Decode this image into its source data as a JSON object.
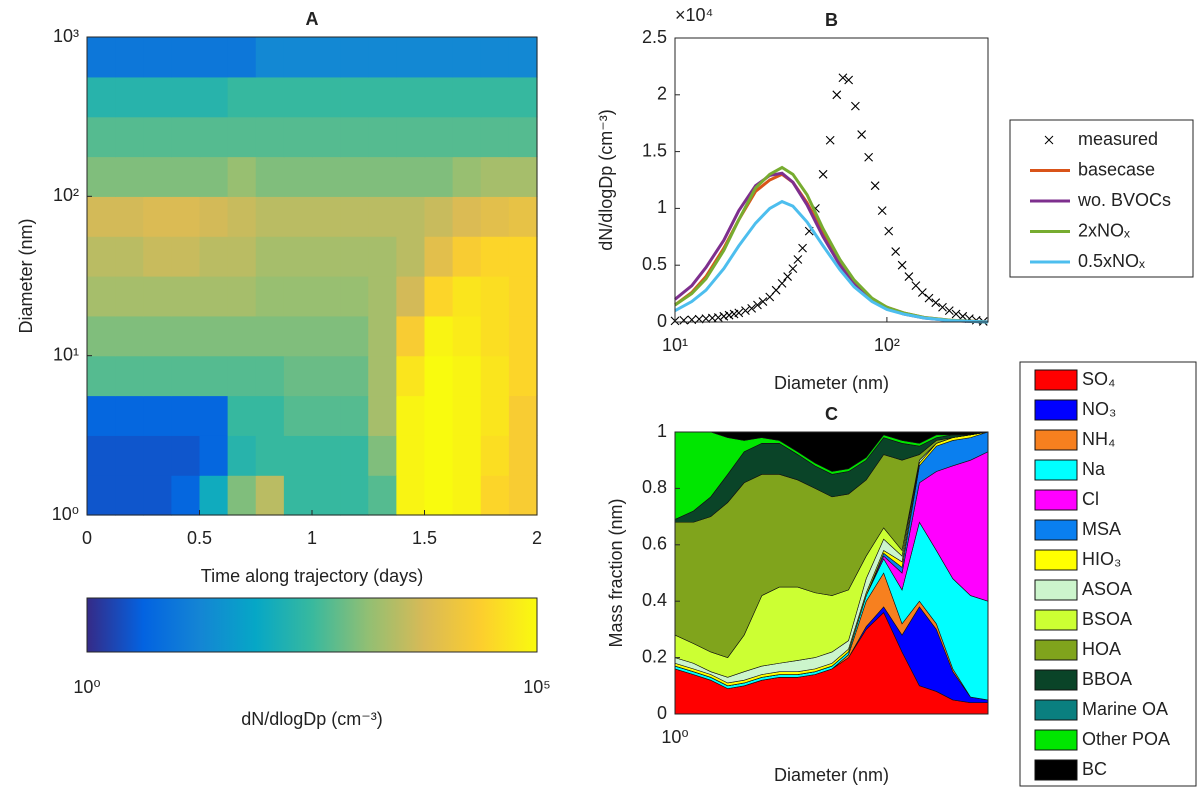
{
  "chart_data": [
    {
      "type": "heatmap",
      "title": "A",
      "xlabel": "Time along trajectory (days)",
      "ylabel": "Diameter (nm)",
      "x_bins": [
        0,
        0.125,
        0.25,
        0.375,
        0.5,
        0.625,
        0.75,
        0.875,
        1,
        1.125,
        1.25,
        1.375,
        1.5,
        1.625,
        1.75,
        1.875,
        2
      ],
      "y_bins": [
        1,
        1.778,
        3.162,
        5.623,
        10,
        17.78,
        31.62,
        56.23,
        100,
        177.8,
        316.2,
        562.3,
        1000
      ],
      "z": [
        [
          3,
          3,
          3,
          5,
          100,
          1000,
          3000,
          300,
          300,
          300,
          500,
          80000,
          100000,
          80000,
          30000,
          20000
        ],
        [
          3,
          3,
          3,
          3,
          5,
          200,
          300,
          300,
          300,
          300,
          1000,
          80000,
          100000,
          80000,
          40000,
          20000
        ],
        [
          5,
          5,
          5,
          5,
          5,
          300,
          300,
          500,
          500,
          500,
          2000,
          80000,
          100000,
          80000,
          50000,
          20000
        ],
        [
          500,
          500,
          500,
          500,
          500,
          500,
          500,
          700,
          700,
          700,
          2000,
          50000,
          100000,
          80000,
          50000,
          30000
        ],
        [
          1000,
          1000,
          1000,
          1000,
          1000,
          1000,
          1000,
          1000,
          1000,
          1000,
          2000,
          20000,
          80000,
          60000,
          40000,
          30000
        ],
        [
          2000,
          2000,
          2000,
          2000,
          2000,
          2000,
          1500,
          1500,
          1500,
          1500,
          2000,
          5000,
          30000,
          50000,
          40000,
          30000
        ],
        [
          3000,
          3000,
          4000,
          4000,
          3000,
          3000,
          2000,
          2000,
          2000,
          2000,
          2000,
          3000,
          8000,
          20000,
          30000,
          30000
        ],
        [
          5000,
          5000,
          6000,
          6000,
          5000,
          4000,
          3000,
          3000,
          3000,
          3000,
          3000,
          3000,
          4000,
          6000,
          8000,
          10000
        ],
        [
          1000,
          1000,
          1000,
          1000,
          1000,
          1500,
          1000,
          1000,
          1000,
          1000,
          1000,
          1000,
          1000,
          1500,
          2000,
          2000
        ],
        [
          500,
          500,
          500,
          500,
          500,
          500,
          500,
          500,
          500,
          500,
          500,
          500,
          500,
          500,
          500,
          500
        ],
        [
          200,
          200,
          200,
          200,
          200,
          300,
          300,
          300,
          300,
          300,
          300,
          300,
          300,
          300,
          300,
          300
        ],
        [
          10,
          10,
          10,
          10,
          10,
          10,
          20,
          20,
          20,
          20,
          20,
          20,
          20,
          20,
          20,
          20
        ]
      ],
      "xlim": [
        0,
        2
      ],
      "xticks": [
        0,
        0.5,
        1,
        1.5,
        2
      ],
      "ylim": [
        1,
        1000
      ],
      "ylog": true,
      "yticks": [
        {
          "value": 1,
          "label": "10⁰"
        },
        {
          "value": 10,
          "label": "10¹"
        },
        {
          "value": 100,
          "label": "10²"
        },
        {
          "value": 1000,
          "label": "10³"
        }
      ],
      "clim": [
        1,
        100000
      ],
      "clog": true,
      "cticks": [
        {
          "value": 1,
          "label": "10⁰"
        },
        {
          "value": 100000,
          "label": "10⁵"
        }
      ],
      "colorbar_label": "dN/dlogDp (cm⁻³)",
      "colormap": [
        "#352a87",
        "#0363e1",
        "#1485d4",
        "#06a7c6",
        "#38b99e",
        "#92bf73",
        "#d9ba56",
        "#fcce2e",
        "#f9fb0e"
      ]
    },
    {
      "type": "line",
      "title": "B",
      "xlabel": "Diameter (nm)",
      "ylabel": "dN/dlogDp (cm⁻³)",
      "exponent_label": "×10⁴",
      "xlim": [
        10,
        300
      ],
      "xlog": true,
      "xticks": [
        {
          "value": 10,
          "label": "10¹"
        },
        {
          "value": 100,
          "label": "10²"
        }
      ],
      "ylim": [
        0,
        25000
      ],
      "yticks": [
        0,
        {
          "value": 5000,
          "label": "0.5"
        },
        {
          "value": 10000,
          "label": "1"
        },
        {
          "value": 15000,
          "label": "1.5"
        },
        {
          "value": 20000,
          "label": "2"
        },
        {
          "value": 25000,
          "label": "2.5"
        }
      ],
      "x": [
        10,
        12,
        14,
        17,
        20,
        24,
        28,
        32,
        36,
        42,
        50,
        60,
        70,
        85,
        100,
        120,
        150,
        200,
        300
      ],
      "series": [
        {
          "name": "measured",
          "color": "#000000",
          "marker": "x",
          "x": [
            10,
            11,
            12,
            13,
            14,
            15,
            16,
            17,
            18,
            19,
            20,
            21.5,
            23,
            24.5,
            26,
            28,
            30,
            32,
            34,
            36,
            38,
            40,
            43,
            46,
            50,
            54,
            58,
            62,
            66,
            71,
            76,
            82,
            88,
            95,
            102,
            110,
            118,
            127,
            137,
            147,
            158,
            170,
            183,
            197,
            212,
            228,
            245,
            264,
            285
          ],
          "values": [
            100,
            150,
            200,
            250,
            300,
            350,
            400,
            500,
            600,
            700,
            800,
            1000,
            1200,
            1500,
            1800,
            2200,
            2800,
            3400,
            4000,
            4700,
            5500,
            6500,
            8000,
            10000,
            13000,
            16000,
            20000,
            21500,
            21300,
            19000,
            16500,
            14500,
            12000,
            9800,
            8000,
            6200,
            5000,
            4000,
            3200,
            2600,
            2100,
            1700,
            1300,
            1000,
            700,
            500,
            300,
            150,
            50
          ]
        },
        {
          "name": "basecase",
          "color": "#d95319",
          "values": [
            1500,
            2600,
            4000,
            6500,
            9000,
            11500,
            12500,
            13000,
            12300,
            10500,
            7800,
            5200,
            3500,
            2000,
            1300,
            800,
            400,
            150,
            0
          ]
        },
        {
          "name": "wo. BVOCs",
          "color": "#7e2f8e",
          "values": [
            2000,
            3200,
            4800,
            7200,
            9800,
            12000,
            12900,
            13100,
            12300,
            10300,
            7500,
            5000,
            3300,
            1900,
            1200,
            700,
            350,
            120,
            0
          ]
        },
        {
          "name": "2xNOₓ",
          "color": "#77ac30",
          "values": [
            1500,
            2500,
            3800,
            6300,
            9000,
            11800,
            13000,
            13600,
            13000,
            11200,
            8200,
            5500,
            3700,
            2100,
            1300,
            800,
            400,
            150,
            0
          ]
        },
        {
          "name": "0.5xNOₓ",
          "color": "#4dbeee",
          "values": [
            1000,
            1800,
            2800,
            4700,
            6700,
            8700,
            10000,
            10600,
            10200,
            8800,
            6700,
            4600,
            3100,
            1800,
            1100,
            700,
            350,
            120,
            0
          ]
        }
      ]
    },
    {
      "type": "stacked_area",
      "title": "C",
      "xlabel": "Diameter (nm)",
      "ylabel": "Mass fraction (nm)",
      "xlim": [
        1,
        1000
      ],
      "xlog": true,
      "xticks": [
        {
          "value": 1,
          "label": "10⁰"
        }
      ],
      "ylim": [
        0,
        1
      ],
      "yticks": [
        0,
        0.2,
        0.4,
        0.6,
        0.8,
        1
      ],
      "x": [
        1,
        1.5,
        2.2,
        3.2,
        4.6,
        6.8,
        10,
        15,
        22,
        32,
        46,
        68,
        100,
        150,
        220,
        320,
        460,
        680,
        1000
      ],
      "series": [
        {
          "name": "SO₄",
          "color": "#ff0000",
          "values": [
            0.16,
            0.14,
            0.12,
            0.09,
            0.1,
            0.12,
            0.13,
            0.13,
            0.14,
            0.16,
            0.2,
            0.3,
            0.36,
            0.22,
            0.1,
            0.08,
            0.05,
            0.04,
            0.04
          ]
        },
        {
          "name": "NO₃",
          "color": "#0000ff",
          "values": [
            0,
            0,
            0,
            0,
            0,
            0,
            0,
            0,
            0,
            0,
            0,
            0.01,
            0.02,
            0.06,
            0.28,
            0.22,
            0.1,
            0.02,
            0.01
          ]
        },
        {
          "name": "NH₄",
          "color": "#f7801f",
          "values": [
            0,
            0,
            0,
            0,
            0,
            0,
            0,
            0,
            0,
            0,
            0.01,
            0.09,
            0.12,
            0.04,
            0.02,
            0.02,
            0.01,
            0,
            0
          ]
        },
        {
          "name": "Na",
          "color": "#00ffff",
          "values": [
            0.01,
            0.01,
            0.01,
            0.01,
            0.01,
            0.01,
            0.01,
            0.01,
            0.01,
            0.01,
            0.01,
            0.02,
            0.05,
            0.12,
            0.28,
            0.26,
            0.32,
            0.36,
            0.35
          ]
        },
        {
          "name": "Cl",
          "color": "#ff00ff",
          "values": [
            0,
            0,
            0,
            0,
            0,
            0,
            0,
            0,
            0,
            0,
            0,
            0,
            0.01,
            0.06,
            0.14,
            0.28,
            0.4,
            0.48,
            0.53
          ]
        },
        {
          "name": "MSA",
          "color": "#0a7fef",
          "values": [
            0,
            0,
            0,
            0,
            0,
            0,
            0,
            0,
            0,
            0,
            0,
            0,
            0.01,
            0.02,
            0.06,
            0.09,
            0.09,
            0.08,
            0.07
          ]
        },
        {
          "name": "HIO₃",
          "color": "#ffff00",
          "values": [
            0.01,
            0.01,
            0.01,
            0.01,
            0.01,
            0.01,
            0.01,
            0.01,
            0.01,
            0.01,
            0.01,
            0.01,
            0.01,
            0.02,
            0.01,
            0.01,
            0.01,
            0.01,
            0
          ]
        },
        {
          "name": "ASOA",
          "color": "#ccf5cc",
          "values": [
            0.02,
            0.02,
            0.01,
            0.02,
            0.03,
            0.03,
            0.03,
            0.04,
            0.04,
            0.04,
            0.03,
            0.05,
            0.04,
            0.02,
            0.01,
            0,
            0,
            0,
            0
          ]
        },
        {
          "name": "BSOA",
          "color": "#ccff33",
          "values": [
            0.08,
            0.07,
            0.07,
            0.07,
            0.13,
            0.25,
            0.27,
            0.26,
            0.23,
            0.2,
            0.18,
            0.08,
            0.04,
            0.02,
            0,
            0,
            0,
            0,
            0
          ]
        },
        {
          "name": "HOA",
          "color": "#80a41c",
          "values": [
            0.4,
            0.43,
            0.48,
            0.55,
            0.54,
            0.43,
            0.4,
            0.38,
            0.37,
            0.35,
            0.34,
            0.27,
            0.26,
            0.32,
            0.02,
            0.01,
            0,
            0,
            0
          ]
        },
        {
          "name": "BBOA",
          "color": "#0a4428",
          "values": [
            0.01,
            0.04,
            0.07,
            0.1,
            0.11,
            0.11,
            0.11,
            0.09,
            0.08,
            0.08,
            0.08,
            0.07,
            0.06,
            0.06,
            0.03,
            0.01,
            0.01,
            0,
            0
          ]
        },
        {
          "name": "Marine OA",
          "color": "#0a7f7f",
          "values": [
            0,
            0,
            0,
            0,
            0,
            0,
            0,
            0,
            0,
            0,
            0,
            0,
            0,
            0,
            0,
            0,
            0,
            0,
            0
          ]
        },
        {
          "name": "Other POA",
          "color": "#00e600",
          "values": [
            0.31,
            0.28,
            0.23,
            0.13,
            0.04,
            0.02,
            0.01,
            0.01,
            0.01,
            0.01,
            0.01,
            0.01,
            0.01,
            0.01,
            0.01,
            0.01,
            0,
            0,
            0
          ]
        },
        {
          "name": "BC",
          "color": "#000000",
          "values": [
            0,
            0,
            0,
            0.02,
            0.03,
            0.02,
            0.03,
            0.07,
            0.11,
            0.14,
            0.13,
            0.09,
            0.01,
            0.03,
            0.04,
            0.01,
            0.01,
            0.01,
            0
          ]
        }
      ]
    }
  ]
}
